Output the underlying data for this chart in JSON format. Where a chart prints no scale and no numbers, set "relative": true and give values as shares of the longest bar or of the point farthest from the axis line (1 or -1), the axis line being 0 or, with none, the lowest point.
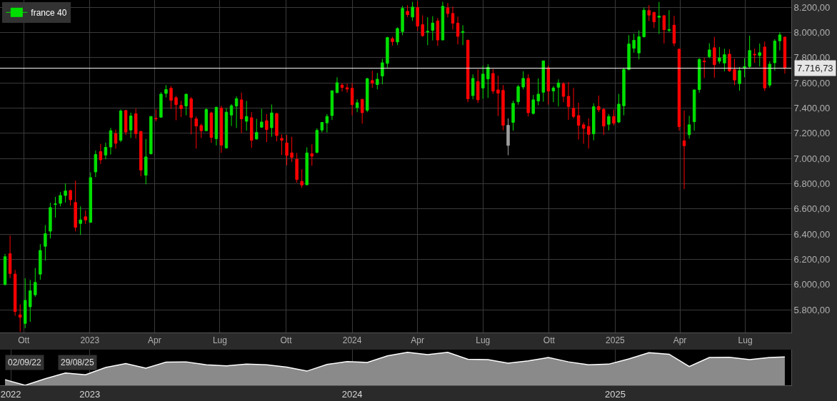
{
  "chart_data": [
    {
      "type": "candlestick",
      "legend": "top left",
      "grid": true,
      "xlim": [
        "2022-08-29",
        "2025-09-03"
      ],
      "xticks": [
        {
          "value": "2022-10-01",
          "label": "Ott"
        },
        {
          "value": "2023-01-01",
          "label": "2023"
        },
        {
          "value": "2023-04-01",
          "label": "Apr"
        },
        {
          "value": "2023-07-01",
          "label": "Lug"
        },
        {
          "value": "2023-10-01",
          "label": "Ott"
        },
        {
          "value": "2024-01-01",
          "label": "2024"
        },
        {
          "value": "2024-04-01",
          "label": "Apr"
        },
        {
          "value": "2024-07-01",
          "label": "Lug"
        },
        {
          "value": "2024-10-01",
          "label": "Ott"
        },
        {
          "value": "2025-01-01",
          "label": "2025"
        },
        {
          "value": "2025-04-01",
          "label": "Apr"
        },
        {
          "value": "2025-07-01",
          "label": "Lug"
        }
      ],
      "ylim": [
        5620,
        8258
      ],
      "yticks": [
        {
          "value": 5800,
          "label": "5.800,00"
        },
        {
          "value": 6000,
          "label": "6.000,00"
        },
        {
          "value": 6200,
          "label": "6.200,00"
        },
        {
          "value": 6400,
          "label": "6.400,00"
        },
        {
          "value": 6600,
          "label": "6.600,00"
        },
        {
          "value": 6800,
          "label": "6.800,00"
        },
        {
          "value": 7000,
          "label": "7.000,00"
        },
        {
          "value": 7200,
          "label": "7.200,00"
        },
        {
          "value": 7400,
          "label": "7.400,00"
        },
        {
          "value": 7600,
          "label": "7.600,00"
        },
        {
          "value": 7800,
          "label": "7.800,00"
        },
        {
          "value": 8000,
          "label": "8.000,00"
        },
        {
          "value": 8200,
          "label": "8.200,00"
        }
      ],
      "ref_lines": [
        {
          "axis": "y",
          "value": 7716.73,
          "label": "7.716,73",
          "color": "#ffffff"
        }
      ],
      "series": [
        {
          "name": "france 40",
          "x": [
            "2022-09-05",
            "2022-09-12",
            "2022-09-19",
            "2022-09-26",
            "2022-10-03",
            "2022-10-10",
            "2022-10-17",
            "2022-10-24",
            "2022-10-31",
            "2022-11-07",
            "2022-11-14",
            "2022-11-21",
            "2022-11-28",
            "2022-12-05",
            "2022-12-12",
            "2022-12-19",
            "2022-12-26",
            "2023-01-02",
            "2023-01-09",
            "2023-01-16",
            "2023-01-23",
            "2023-01-30",
            "2023-02-06",
            "2023-02-13",
            "2023-02-20",
            "2023-02-27",
            "2023-03-06",
            "2023-03-13",
            "2023-03-20",
            "2023-03-27",
            "2023-04-03",
            "2023-04-10",
            "2023-04-17",
            "2023-04-24",
            "2023-05-01",
            "2023-05-08",
            "2023-05-15",
            "2023-05-22",
            "2023-05-29",
            "2023-06-05",
            "2023-06-12",
            "2023-06-19",
            "2023-06-26",
            "2023-07-03",
            "2023-07-10",
            "2023-07-17",
            "2023-07-24",
            "2023-07-31",
            "2023-08-07",
            "2023-08-14",
            "2023-08-21",
            "2023-08-28",
            "2023-09-04",
            "2023-09-11",
            "2023-09-18",
            "2023-09-25",
            "2023-10-02",
            "2023-10-09",
            "2023-10-16",
            "2023-10-23",
            "2023-10-30",
            "2023-11-06",
            "2023-11-13",
            "2023-11-20",
            "2023-11-27",
            "2023-12-04",
            "2023-12-11",
            "2023-12-18",
            "2023-12-25",
            "2024-01-01",
            "2024-01-08",
            "2024-01-15",
            "2024-01-22",
            "2024-01-29",
            "2024-02-05",
            "2024-02-12",
            "2024-02-19",
            "2024-02-26",
            "2024-03-04",
            "2024-03-11",
            "2024-03-18",
            "2024-03-25",
            "2024-04-01",
            "2024-04-08",
            "2024-04-15",
            "2024-04-22",
            "2024-04-29",
            "2024-05-06",
            "2024-05-13",
            "2024-05-20",
            "2024-05-27",
            "2024-06-03",
            "2024-06-10",
            "2024-06-17",
            "2024-06-24",
            "2024-07-01",
            "2024-07-08",
            "2024-07-15",
            "2024-07-22",
            "2024-07-29",
            "2024-08-05",
            "2024-08-12",
            "2024-08-19",
            "2024-08-26",
            "2024-09-02",
            "2024-09-09",
            "2024-09-16",
            "2024-09-23",
            "2024-09-30",
            "2024-10-07",
            "2024-10-14",
            "2024-10-21",
            "2024-10-28",
            "2024-11-04",
            "2024-11-11",
            "2024-11-18",
            "2024-11-25",
            "2024-12-02",
            "2024-12-09",
            "2024-12-16",
            "2024-12-23",
            "2024-12-30",
            "2025-01-06",
            "2025-01-13",
            "2025-01-20",
            "2025-01-27",
            "2025-02-03",
            "2025-02-10",
            "2025-02-17",
            "2025-02-24",
            "2025-03-03",
            "2025-03-10",
            "2025-03-17",
            "2025-03-24",
            "2025-03-31",
            "2025-04-07",
            "2025-04-14",
            "2025-04-21",
            "2025-04-28",
            "2025-05-05",
            "2025-05-12",
            "2025-05-19",
            "2025-05-26",
            "2025-06-02",
            "2025-06-09",
            "2025-06-16",
            "2025-06-23",
            "2025-06-30",
            "2025-07-07",
            "2025-07-14",
            "2025-07-21",
            "2025-07-28",
            "2025-08-04",
            "2025-08-11",
            "2025-08-18",
            "2025-08-25"
          ],
          "ohlc": [
            [
              6000,
              6243,
              5995,
              6221
            ],
            [
              6245,
              6390,
              6051,
              6088
            ],
            [
              6083,
              6117,
              5753,
              5787
            ],
            [
              5760,
              5843,
              5626,
              5741
            ],
            [
              5692,
              6051,
              5654,
              5875
            ],
            [
              5824,
              6036,
              5705,
              5951
            ],
            [
              5919,
              6132,
              5904,
              6017
            ],
            [
              6083,
              6321,
              6038,
              6271
            ],
            [
              6304,
              6472,
              6190,
              6404
            ],
            [
              6424,
              6649,
              6366,
              6611
            ],
            [
              6636,
              6696,
              6532,
              6640
            ],
            [
              6645,
              6734,
              6621,
              6707
            ],
            [
              6707,
              6802,
              6651,
              6743
            ],
            [
              6747,
              6750,
              6626,
              6673
            ],
            [
              6651,
              6824,
              6422,
              6455
            ],
            [
              6485,
              6621,
              6394,
              6513
            ],
            [
              6538,
              6589,
              6481,
              6513
            ],
            [
              6494,
              6890,
              6490,
              6849
            ],
            [
              6894,
              7064,
              6853,
              7032
            ],
            [
              7055,
              7117,
              6956,
              6990
            ],
            [
              7028,
              7126,
              6994,
              7089
            ],
            [
              7092,
              7243,
              7032,
              7221
            ],
            [
              7198,
              7230,
              7079,
              7121
            ],
            [
              7145,
              7390,
              7130,
              7377
            ],
            [
              7381,
              7387,
              7187,
              7211
            ],
            [
              7226,
              7364,
              7164,
              7338
            ],
            [
              7355,
              7396,
              7158,
              7198
            ],
            [
              7215,
              7218,
              6858,
              6909
            ],
            [
              6868,
              7155,
              6796,
              7013
            ],
            [
              7038,
              7336,
              7032,
              7334
            ],
            [
              7319,
              7390,
              7296,
              7315
            ],
            [
              7328,
              7526,
              7325,
              7511
            ],
            [
              7517,
              7583,
              7485,
              7547
            ],
            [
              7557,
              7575,
              7394,
              7462
            ],
            [
              7483,
              7498,
              7304,
              7428
            ],
            [
              7421,
              7458,
              7330,
              7396
            ],
            [
              7417,
              7513,
              7343,
              7511
            ],
            [
              7474,
              7489,
              7192,
              7326
            ],
            [
              7315,
              7334,
              7079,
              7258
            ],
            [
              7262,
              7277,
              7164,
              7221
            ],
            [
              7221,
              7400,
              7218,
              7389
            ],
            [
              7362,
              7372,
              7126,
              7168
            ],
            [
              7158,
              7413,
              7104,
              7406
            ],
            [
              7400,
              7419,
              7045,
              7107
            ],
            [
              7085,
              7400,
              7079,
              7368
            ],
            [
              7345,
              7432,
              7258,
              7419
            ],
            [
              7417,
              7494,
              7243,
              7475
            ],
            [
              7466,
              7523,
              7202,
              7315
            ],
            [
              7296,
              7457,
              7221,
              7334
            ],
            [
              7324,
              7368,
              7085,
              7145
            ],
            [
              7155,
              7315,
              7150,
              7207
            ],
            [
              7249,
              7394,
              7243,
              7290
            ],
            [
              7300,
              7353,
              7130,
              7230
            ],
            [
              7245,
              7428,
              7173,
              7362
            ],
            [
              7357,
              7362,
              7136,
              7183
            ],
            [
              7160,
              7192,
              7028,
              7145
            ],
            [
              7123,
              7187,
              6947,
              7026
            ],
            [
              7045,
              7173,
              6972,
              7009
            ],
            [
              6994,
              7045,
              6809,
              6834
            ],
            [
              6819,
              6915,
              6768,
              6790
            ],
            [
              6792,
              7089,
              6788,
              7045
            ],
            [
              7038,
              7113,
              6943,
              7019
            ],
            [
              7049,
              7240,
              7041,
              7224
            ],
            [
              7226,
              7290,
              7207,
              7287
            ],
            [
              7283,
              7353,
              7207,
              7334
            ],
            [
              7341,
              7540,
              7306,
              7538
            ],
            [
              7523,
              7645,
              7520,
              7602
            ],
            [
              7583,
              7598,
              7532,
              7564
            ],
            [
              7562,
              7594,
              7523,
              7551
            ],
            [
              7557,
              7598,
              7343,
              7428
            ],
            [
              7404,
              7470,
              7368,
              7443
            ],
            [
              7470,
              7472,
              7277,
              7364
            ],
            [
              7383,
              7640,
              7368,
              7634
            ],
            [
              7619,
              7696,
              7560,
              7598
            ],
            [
              7587,
              7679,
              7549,
              7630
            ],
            [
              7655,
              7791,
              7589,
              7760
            ],
            [
              7755,
              7966,
              7721,
              7960
            ],
            [
              7951,
              7966,
              7896,
              7928
            ],
            [
              7925,
              8041,
              7900,
              8032
            ],
            [
              8008,
              8211,
              7979,
              8191
            ],
            [
              8168,
              8217,
              8123,
              8142
            ],
            [
              8123,
              8243,
              8092,
              8202
            ],
            [
              8198,
              8249,
              8013,
              8051
            ],
            [
              8062,
              8136,
              7966,
              7975
            ],
            [
              8004,
              8121,
              7900,
              8009
            ],
            [
              8017,
              8130,
              7938,
              8075
            ],
            [
              8092,
              8115,
              7894,
              7941
            ],
            [
              7941,
              8243,
              7938,
              8208
            ],
            [
              8196,
              8234,
              8121,
              8151
            ],
            [
              8151,
              8206,
              8023,
              8074
            ],
            [
              8074,
              8126,
              7906,
              7970
            ],
            [
              8000,
              8058,
              7900,
              8008
            ],
            [
              7938,
              7945,
              7447,
              7474
            ],
            [
              7500,
              7668,
              7470,
              7636
            ],
            [
              7611,
              7707,
              7441,
              7466
            ],
            [
              7560,
              7736,
              7475,
              7670
            ],
            [
              7632,
              7749,
              7481,
              7724
            ],
            [
              7675,
              7711,
              7513,
              7536
            ],
            [
              7545,
              7658,
              7338,
              7519
            ],
            [
              7541,
              7583,
              7224,
              7264
            ],
            [
              7264,
              7319,
              7026,
              7104
            ],
            [
              7287,
              7460,
              7221,
              7438
            ],
            [
              7451,
              7585,
              7428,
              7570
            ],
            [
              7568,
              7692,
              7549,
              7636
            ],
            [
              7636,
              7668,
              7334,
              7364
            ],
            [
              7358,
              7504,
              7349,
              7466
            ],
            [
              7457,
              7636,
              7424,
              7511
            ],
            [
              7526,
              7777,
              7451,
              7775
            ],
            [
              7719,
              7738,
              7428,
              7536
            ],
            [
              7536,
              7575,
              7447,
              7560
            ],
            [
              7566,
              7628,
              7413,
              7600
            ],
            [
              7592,
              7607,
              7447,
              7494
            ],
            [
              7494,
              7607,
              7306,
              7413
            ],
            [
              7398,
              7560,
              7319,
              7334
            ],
            [
              7341,
              7443,
              7151,
              7264
            ],
            [
              7268,
              7287,
              7117,
              7240
            ],
            [
              7255,
              7319,
              7079,
              7192
            ],
            [
              7196,
              7438,
              7145,
              7411
            ],
            [
              7413,
              7500,
              7368,
              7387
            ],
            [
              7390,
              7400,
              7187,
              7258
            ],
            [
              7272,
              7353,
              7224,
              7334
            ],
            [
              7334,
              7390,
              7262,
              7281
            ],
            [
              7290,
              7513,
              7281,
              7432
            ],
            [
              7419,
              7721,
              7343,
              7706
            ],
            [
              7707,
              7979,
              7700,
              7909
            ],
            [
              7875,
              7991,
              7840,
              7938
            ],
            [
              7838,
              8017,
              7787,
              7966
            ],
            [
              7966,
              8198,
              7960,
              8177
            ],
            [
              8174,
              8217,
              8092,
              8138
            ],
            [
              8160,
              8164,
              8036,
              8085
            ],
            [
              8121,
              8243,
              7989,
              8130
            ],
            [
              8134,
              8136,
              7913,
              8023
            ],
            [
              8017,
              8177,
              8004,
              8023
            ],
            [
              8058,
              8132,
              7891,
              7915
            ],
            [
              7868,
              7870,
              7221,
              7253
            ],
            [
              7141,
              7381,
              6758,
              7102
            ],
            [
              7189,
              7340,
              7158,
              7268
            ],
            [
              7292,
              7547,
              7221,
              7545
            ],
            [
              7547,
              7796,
              7523,
              7787
            ],
            [
              7774,
              7800,
              7640,
              7768
            ],
            [
              7809,
              7915,
              7796,
              7862
            ],
            [
              7879,
              7966,
              7641,
              7745
            ],
            [
              7772,
              7885,
              7753,
              7798
            ],
            [
              7758,
              7872,
              7692,
              7824
            ],
            [
              7828,
              7868,
              7687,
              7696
            ],
            [
              7706,
              7791,
              7583,
              7623
            ],
            [
              7594,
              7726,
              7538,
              7698
            ],
            [
              7721,
              7796,
              7645,
              7730
            ],
            [
              7730,
              7975,
              7715,
              7857
            ],
            [
              7828,
              7872,
              7758,
              7823
            ],
            [
              7817,
              7913,
              7730,
              7840
            ],
            [
              7885,
              7928,
              7536,
              7560
            ],
            [
              7583,
              7772,
              7564,
              7749
            ],
            [
              7760,
              7947,
              7698,
              7932
            ],
            [
              7934,
              8002,
              7858,
              7981
            ],
            [
              7964,
              7966,
              7674,
              7716.73
            ]
          ],
          "colors": [
            "#00e000",
            "#ff0000",
            "#ff0000",
            "#ff0000",
            "#00e000",
            "#00e000",
            "#00e000",
            "#00e000",
            "#00e000",
            "#00e000",
            "#00e000",
            "#00e000",
            "#00e000",
            "#ff0000",
            "#ff0000",
            "#00e000",
            "#ff0000",
            "#00e000",
            "#00e000",
            "#ff0000",
            "#00e000",
            "#00e000",
            "#ff0000",
            "#00e000",
            "#ff0000",
            "#00e000",
            "#ff0000",
            "#ff0000",
            "#00e000",
            "#00e000",
            "#ff0000",
            "#00e000",
            "#00e000",
            "#ff0000",
            "#ff0000",
            "#ff0000",
            "#00e000",
            "#ff0000",
            "#ff0000",
            "#ff0000",
            "#00e000",
            "#ff0000",
            "#00e000",
            "#ff0000",
            "#00e000",
            "#00e000",
            "#00e000",
            "#ff0000",
            "#00e000",
            "#ff0000",
            "#00e000",
            "#00e000",
            "#ff0000",
            "#00e000",
            "#ff0000",
            "#ff0000",
            "#ff0000",
            "#ff0000",
            "#ff0000",
            "#ff0000",
            "#00e000",
            "#ff0000",
            "#00e000",
            "#00e000",
            "#00e000",
            "#00e000",
            "#00e000",
            "#ff0000",
            "#ff0000",
            "#ff0000",
            "#00e000",
            "#ff0000",
            "#00e000",
            "#ff0000",
            "#00e000",
            "#00e000",
            "#00e000",
            "#ff0000",
            "#00e000",
            "#00e000",
            "#ff0000",
            "#00e000",
            "#ff0000",
            "#ff0000",
            "#00e000",
            "#00e000",
            "#ff0000",
            "#00e000",
            "#ff0000",
            "#ff0000",
            "#ff0000",
            "#00e000",
            "#ff0000",
            "#00e000",
            "#ff0000",
            "#00e000",
            "#00e000",
            "#ff0000",
            "#ff0000",
            "#ff0000",
            "#9e9e9e",
            "#00e000",
            "#00e000",
            "#00e000",
            "#ff0000",
            "#00e000",
            "#00e000",
            "#00e000",
            "#ff0000",
            "#00e000",
            "#00e000",
            "#ff0000",
            "#ff0000",
            "#ff0000",
            "#ff0000",
            "#ff0000",
            "#ff0000",
            "#00e000",
            "#ff0000",
            "#ff0000",
            "#00e000",
            "#ff0000",
            "#00e000",
            "#00e000",
            "#00e000",
            "#00e000",
            "#00e000",
            "#00e000",
            "#ff0000",
            "#ff0000",
            "#00e000",
            "#ff0000",
            "#00e000",
            "#ff0000",
            "#ff0000",
            "#ff0000",
            "#00e000",
            "#00e000",
            "#00e000",
            "#ff0000",
            "#00e000",
            "#ff0000",
            "#00e000",
            "#00e000",
            "#ff0000",
            "#ff0000",
            "#00e000",
            "#00e000",
            "#00e000",
            "#ff0000",
            "#00e000",
            "#ff0000",
            "#00e000",
            "#00e000",
            "#00e000",
            "#ff0000"
          ]
        }
      ]
    },
    {
      "type": "area",
      "relative": true,
      "tick_labels": "x",
      "grid": "x",
      "xlim": [
        "2022-08-29",
        "2025-09-03"
      ],
      "xticks": [
        {
          "value": "2022-09-13",
          "label": "2022"
        },
        {
          "value": "2023-01-01",
          "label": "2023"
        },
        {
          "value": "2024-01-01",
          "label": "2024"
        },
        {
          "value": "2025-01-01",
          "label": "2025"
        }
      ],
      "annotations": [
        "02/09/22",
        "29/08/25"
      ],
      "series": [
        {
          "color": "#8a8a8a",
          "x": [
            "2022-09-05",
            "2022-10-03",
            "2022-10-31",
            "2022-11-28",
            "2022-12-26",
            "2023-01-23",
            "2023-02-20",
            "2023-03-20",
            "2023-04-17",
            "2023-05-15",
            "2023-06-12",
            "2023-07-10",
            "2023-08-07",
            "2023-09-04",
            "2023-10-02",
            "2023-10-30",
            "2023-11-27",
            "2023-12-25",
            "2024-01-22",
            "2024-02-19",
            "2024-03-18",
            "2024-04-15",
            "2024-05-13",
            "2024-06-10",
            "2024-07-08",
            "2024-08-05",
            "2024-09-02",
            "2024-09-30",
            "2024-10-28",
            "2024-11-25",
            "2024-12-23",
            "2025-01-20",
            "2025-02-17",
            "2025-03-17",
            "2025-04-14",
            "2025-05-12",
            "2025-06-09",
            "2025-07-07",
            "2025-08-04",
            "2025-08-25"
          ],
          "values": [
            0.17,
            0,
            0.2,
            0.37,
            0.32,
            0.54,
            0.66,
            0.52,
            0.7,
            0.71,
            0.62,
            0.59,
            0.64,
            0.62,
            0.55,
            0.43,
            0.63,
            0.72,
            0.69,
            0.89,
            1,
            0.93,
            1,
            0.79,
            0.78,
            0.67,
            0.74,
            0.84,
            0.71,
            0.62,
            0.64,
            0.8,
            0.99,
            0.94,
            0.57,
            0.84,
            0.85,
            0.78,
            0.84,
            0.86
          ]
        }
      ]
    }
  ]
}
